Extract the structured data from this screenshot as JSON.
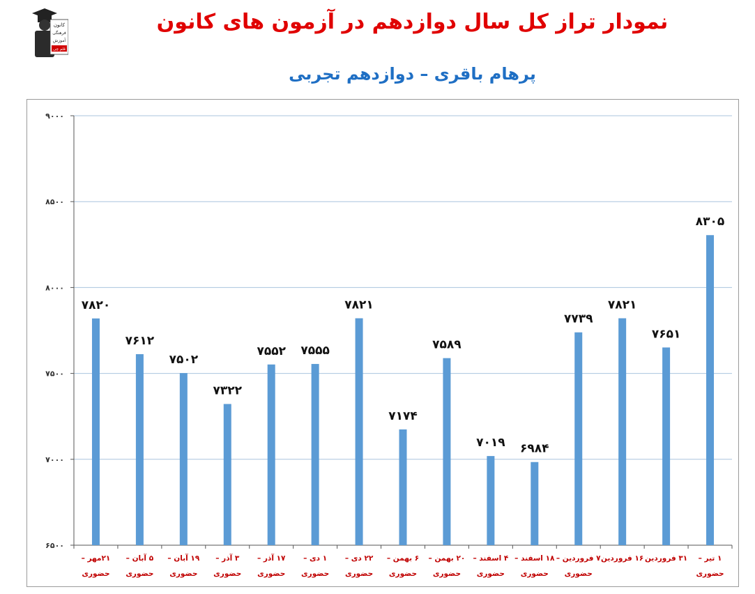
{
  "header": {
    "title": "نمودار تراز کل سال دوازدهم در آزمون های کانون",
    "subtitle": "پرهام باقری – دوازدهم تجربی",
    "logo_text": [
      "کانون",
      "فرهنگی",
      "آموزش",
      "قلم چی"
    ]
  },
  "colors": {
    "bar": "#5b9bd5",
    "grid": "#aac4de",
    "title": "#e00000",
    "subtitle": "#1f6fc4",
    "xlabel": "#c00000"
  },
  "chart_data": {
    "type": "bar",
    "title": "",
    "xlabel": "",
    "ylabel": "",
    "ylim": [
      6500,
      9000
    ],
    "yticks": [
      6500,
      7000,
      7500,
      8000,
      8500,
      9000
    ],
    "ytick_labels": [
      "۶۵۰۰",
      "۷۰۰۰",
      "۷۵۰۰",
      "۸۰۰۰",
      "۸۵۰۰",
      "۹۰۰۰"
    ],
    "grid": true,
    "categories": [
      [
        "۲۱مهر –",
        "حضوری"
      ],
      [
        "۵ آبان –",
        "حضوری"
      ],
      [
        "۱۹ آبان –",
        "حضوری"
      ],
      [
        "۳ آذر –",
        "حضوری"
      ],
      [
        "۱۷ آذر –",
        "حضوری"
      ],
      [
        "۱ دی –",
        "حضوری"
      ],
      [
        "۲۲ دی –",
        "حضوری"
      ],
      [
        "۶ بهمن –",
        "حضوری"
      ],
      [
        "۲۰ بهمن –",
        "حضوری"
      ],
      [
        "۴ اسفند –",
        "حضوری"
      ],
      [
        "۱۸ اسفند –",
        "حضوری"
      ],
      [
        "۷ فروردین –",
        "حضوری"
      ],
      [
        "۱۶ فروردین",
        ""
      ],
      [
        "۳۱ فروردین",
        ""
      ],
      [
        "۱ تیر –",
        "حضوری"
      ]
    ],
    "values": [
      7820,
      7612,
      7502,
      7322,
      7552,
      7555,
      7821,
      7174,
      7589,
      7019,
      6984,
      7739,
      7821,
      7651,
      8305
    ],
    "value_labels": [
      "۷۸۲۰",
      "۷۶۱۲",
      "۷۵۰۲",
      "۷۳۲۲",
      "۷۵۵۲",
      "۷۵۵۵",
      "۷۸۲۱",
      "۷۱۷۴",
      "۷۵۸۹",
      "۷۰۱۹",
      "۶۹۸۴",
      "۷۷۳۹",
      "۷۸۲۱",
      "۷۶۵۱",
      "۸۳۰۵"
    ]
  }
}
